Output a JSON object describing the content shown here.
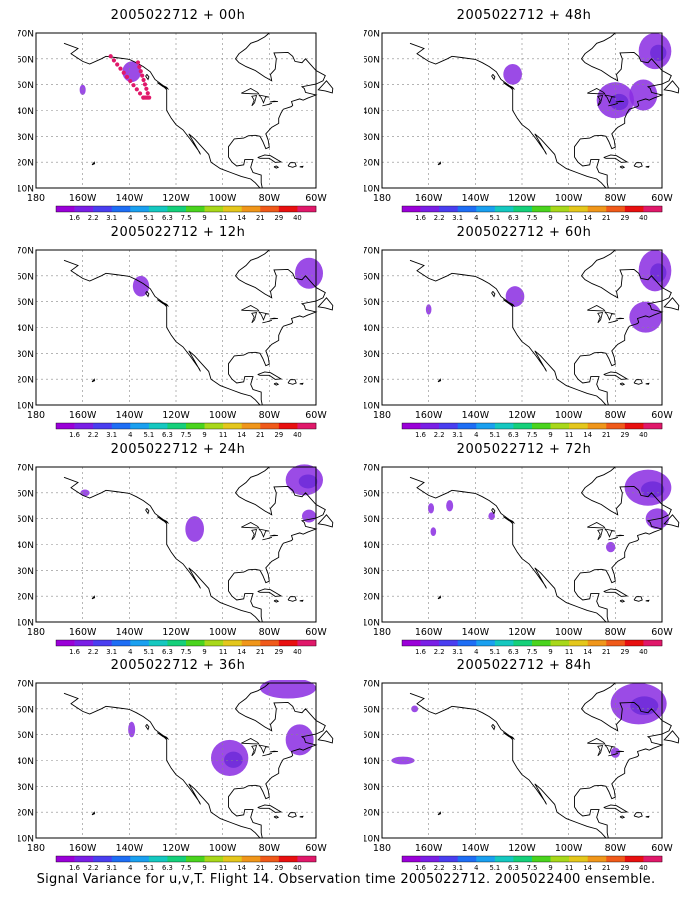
{
  "panels": [
    {
      "title": "2005022712 + 00h"
    },
    {
      "title": "2005022712 + 48h"
    },
    {
      "title": "2005022712 + 12h"
    },
    {
      "title": "2005022712 + 60h"
    },
    {
      "title": "2005022712 + 24h"
    },
    {
      "title": "2005022712 + 72h"
    },
    {
      "title": "2005022712 + 36h"
    },
    {
      "title": "2005022712 + 84h"
    }
  ],
  "lat_labels": [
    "70N",
    "60N",
    "50N",
    "40N",
    "30N",
    "20N",
    "10N"
  ],
  "lon_labels": [
    "180",
    "160W",
    "140W",
    "120W",
    "100W",
    "80W",
    "60W"
  ],
  "colorbar": {
    "labels": [
      "1.6",
      "2.2",
      "3.1",
      "4",
      "5.1",
      "6.3",
      "7.5",
      "9",
      "11",
      "14",
      "21",
      "29",
      "40"
    ],
    "colors": [
      "#9a00d8",
      "#7a1fe6",
      "#4a3ef0",
      "#1e6ef5",
      "#1aa0f0",
      "#15c8c0",
      "#15d07a",
      "#4ad41e",
      "#a8d81a",
      "#e4c71c",
      "#f0961a",
      "#f05a1a",
      "#e81010",
      "#e0186a"
    ]
  },
  "contour_color": "#8a2be2",
  "footer": "Signal Variance for u,v,T. Flight 14. Observation time 2005022712. 2005022400 ensemble."
}
